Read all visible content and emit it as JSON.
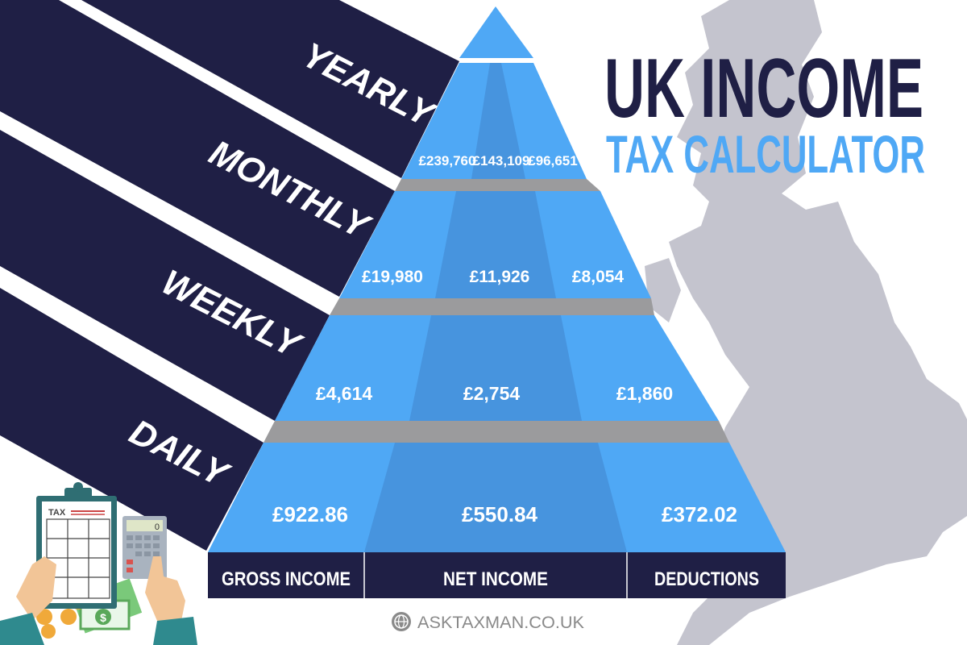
{
  "title": {
    "line1": "UK INCOME",
    "line2": "TAX CALCULATOR"
  },
  "periods": [
    {
      "label": "YEARLY",
      "gross": "£239,760",
      "net": "£143,109",
      "deductions": "£96,651"
    },
    {
      "label": "MONTHLY",
      "gross": "£19,980",
      "net": "£11,926",
      "deductions": "£8,054"
    },
    {
      "label": "WEEKLY",
      "gross": "£4,614",
      "net": "£2,754",
      "deductions": "£1,860"
    },
    {
      "label": "DAILY",
      "gross": "£922.86",
      "net": "£550.84",
      "deductions": "£372.02"
    }
  ],
  "columns": [
    "GROSS INCOME",
    "NET INCOME",
    "DEDUCTIONS"
  ],
  "footer": {
    "site": "ASKTAXMAN.CO.UK",
    "icon": "globe-icon"
  },
  "illustration": {
    "clipboard_label": "TAX",
    "calculator_display": "0"
  },
  "colors": {
    "navy": "#1f1f45",
    "blue": "#4fa8f5",
    "blue_dark": "#4794de",
    "slab": "#9b9b9d",
    "map": "#c4c4ce"
  }
}
